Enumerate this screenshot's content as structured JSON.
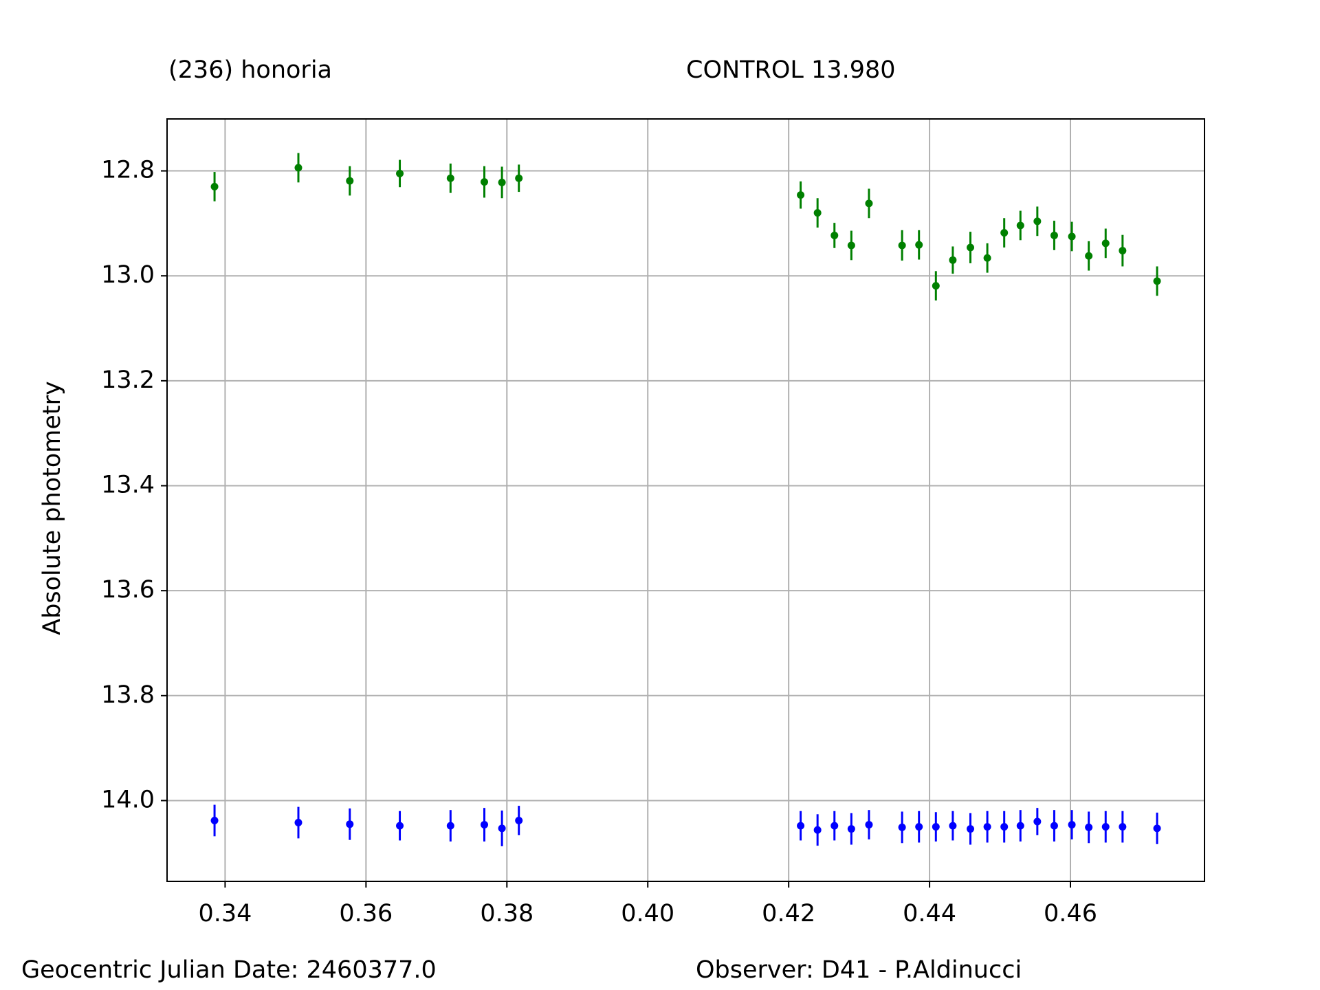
{
  "chart_data": {
    "type": "errorbar",
    "xlabel": "Geocentric Julian Date: 2460377.0",
    "ylabel": "Absolute photometry",
    "note": "Observer: D41 - P.Aldinucci",
    "x": [
      0.3385,
      0.3504,
      0.3577,
      0.3648,
      0.372,
      0.3768,
      0.3793,
      0.3817,
      0.4217,
      0.4241,
      0.4265,
      0.4289,
      0.4314,
      0.4361,
      0.4385,
      0.4409,
      0.4433,
      0.4458,
      0.4482,
      0.4506,
      0.4529,
      0.4553,
      0.4577,
      0.4602,
      0.4626,
      0.465,
      0.4674,
      0.4723
    ],
    "series": [
      {
        "name": "(236) honoria",
        "color": "#008000",
        "values": [
          12.83,
          12.794,
          12.819,
          12.805,
          12.814,
          12.821,
          12.822,
          12.814,
          12.846,
          12.88,
          12.923,
          12.942,
          12.862,
          12.942,
          12.941,
          13.019,
          12.97,
          12.946,
          12.966,
          12.918,
          12.904,
          12.896,
          12.923,
          12.925,
          12.962,
          12.938,
          12.952,
          13.01
        ],
        "errors": [
          0.028,
          0.028,
          0.028,
          0.026,
          0.028,
          0.03,
          0.03,
          0.026,
          0.026,
          0.028,
          0.024,
          0.028,
          0.028,
          0.029,
          0.028,
          0.028,
          0.026,
          0.03,
          0.028,
          0.028,
          0.028,
          0.028,
          0.028,
          0.028,
          0.028,
          0.028,
          0.03,
          0.028
        ]
      },
      {
        "name": "CONTROL 13.980",
        "color": "#0000ff",
        "values": [
          14.038,
          14.042,
          14.045,
          14.048,
          14.048,
          14.046,
          14.053,
          14.038,
          14.048,
          14.056,
          14.048,
          14.054,
          14.046,
          14.051,
          14.05,
          14.05,
          14.048,
          14.054,
          14.05,
          14.05,
          14.048,
          14.04,
          14.048,
          14.046,
          14.051,
          14.05,
          14.05,
          14.053
        ],
        "errors": [
          0.03,
          0.03,
          0.03,
          0.028,
          0.03,
          0.032,
          0.034,
          0.028,
          0.028,
          0.03,
          0.028,
          0.03,
          0.028,
          0.03,
          0.03,
          0.028,
          0.028,
          0.03,
          0.03,
          0.03,
          0.03,
          0.026,
          0.03,
          0.028,
          0.03,
          0.03,
          0.03,
          0.03
        ]
      }
    ],
    "xlim": [
      0.33176,
      0.47903
    ],
    "xticks": [
      0.34,
      0.36,
      0.38,
      {
        "value": 0.4,
        "label": "0.40"
      },
      0.42,
      0.44,
      0.46
    ],
    "ylim": [
      12.701,
      14.154
    ],
    "y_inverted": true,
    "yticks": [
      12.8,
      {
        "value": 13.0,
        "label": "13.0"
      },
      13.2,
      13.4,
      13.6,
      13.8,
      {
        "value": 14.0,
        "label": "14.0"
      }
    ],
    "grid": true
  }
}
